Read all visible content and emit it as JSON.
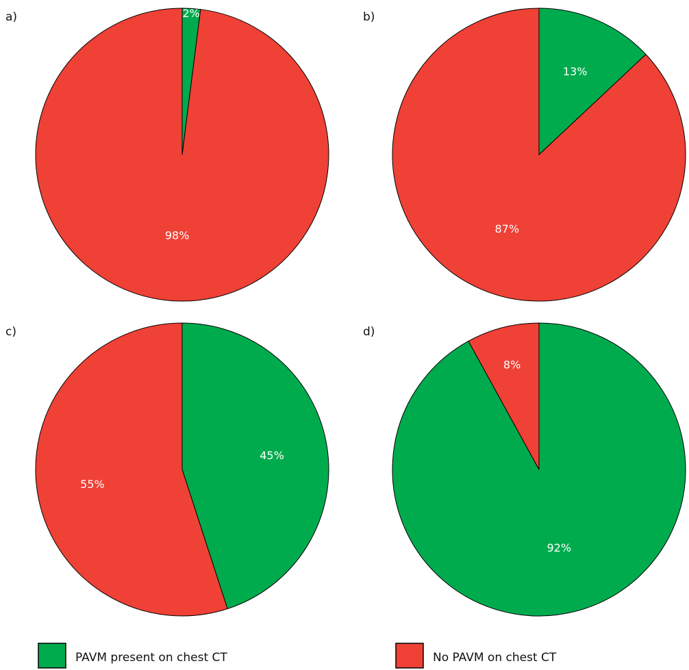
{
  "colors": {
    "present": "#00ab4e",
    "absent": "#ef4136",
    "outline": "#000000"
  },
  "legend": [
    {
      "key": "present",
      "label": "PAVM present on chest CT"
    },
    {
      "key": "absent",
      "label": "No PAVM on chest CT"
    }
  ],
  "chart_data": [
    {
      "type": "pie",
      "panel": "a)",
      "slices": [
        {
          "key": "present",
          "value": 2,
          "label": "2%"
        },
        {
          "key": "absent",
          "value": 98,
          "label": "98%"
        }
      ]
    },
    {
      "type": "pie",
      "panel": "b)",
      "slices": [
        {
          "key": "present",
          "value": 13,
          "label": "13%"
        },
        {
          "key": "absent",
          "value": 87,
          "label": "87%"
        }
      ]
    },
    {
      "type": "pie",
      "panel": "c)",
      "slices": [
        {
          "key": "present",
          "value": 45,
          "label": "45%"
        },
        {
          "key": "absent",
          "value": 55,
          "label": "55%"
        }
      ]
    },
    {
      "type": "pie",
      "panel": "d)",
      "slices": [
        {
          "key": "present",
          "value": 92,
          "label": "92%"
        },
        {
          "key": "absent",
          "value": 8,
          "label": "8%"
        }
      ]
    }
  ]
}
